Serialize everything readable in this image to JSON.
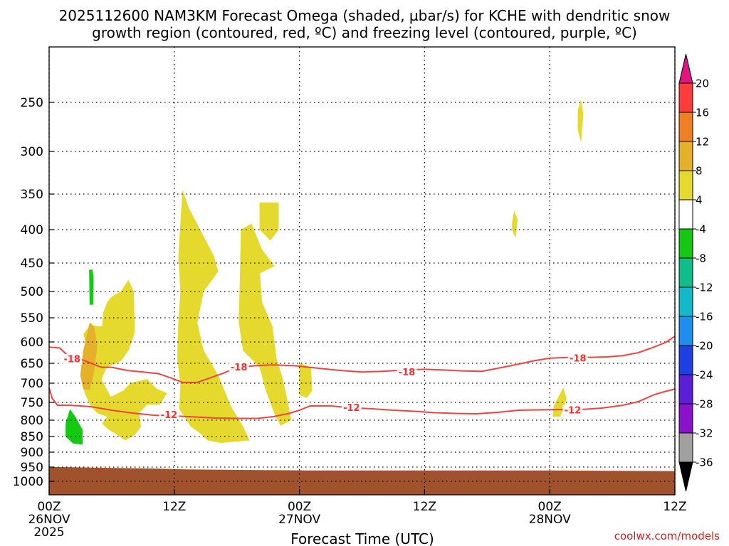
{
  "chart_data": {
    "type": "heatmap",
    "title_line1": "2025112600 NAM3KM Forecast Omega (shaded, µbar/s) for KCHE with dendritic snow",
    "title_line2": "growth region (contoured, red, ºC) and freezing level (contoured, purple, ºC)",
    "xlabel": "Forecast Time (UTC)",
    "x_range_hours": [
      0,
      60
    ],
    "pressure_range_hpa": [
      1025,
      200
    ],
    "x_ticks": [
      {
        "hour": 0,
        "line1": "00Z",
        "line2": "26NOV",
        "line3": "2025"
      },
      {
        "hour": 12,
        "line1": "12Z",
        "line2": "",
        "line3": ""
      },
      {
        "hour": 24,
        "line1": "00Z",
        "line2": "27NOV",
        "line3": ""
      },
      {
        "hour": 36,
        "line1": "12Z",
        "line2": "",
        "line3": ""
      },
      {
        "hour": 48,
        "line1": "00Z",
        "line2": "28NOV",
        "line3": ""
      },
      {
        "hour": 60,
        "line1": "12Z",
        "line2": "",
        "line3": ""
      }
    ],
    "y_ticks": [
      {
        "p": 250,
        "label": "250"
      },
      {
        "p": 300,
        "label": "300"
      },
      {
        "p": 350,
        "label": "350"
      },
      {
        "p": 400,
        "label": "400"
      },
      {
        "p": 450,
        "label": "450"
      },
      {
        "p": 500,
        "label": "500"
      },
      {
        "p": 550,
        "label": "550"
      },
      {
        "p": 600,
        "label": "600"
      },
      {
        "p": 650,
        "label": "650"
      },
      {
        "p": 700,
        "label": "700"
      },
      {
        "p": 750,
        "label": "750"
      },
      {
        "p": 800,
        "label": "800"
      },
      {
        "p": 850,
        "label": "850"
      },
      {
        "p": 900,
        "label": "900"
      },
      {
        "p": 950,
        "label": "950"
      },
      {
        "p": 1000,
        "label": "1000"
      }
    ],
    "colorbar": [
      {
        "value": 20,
        "label": "20",
        "color": "#ff3b3b"
      },
      {
        "value": 16,
        "label": "16",
        "color": "#ef7f22"
      },
      {
        "value": 12,
        "label": "12",
        "color": "#e5b02a"
      },
      {
        "value": 8,
        "label": "8",
        "color": "#e6d92e"
      },
      {
        "value": 4,
        "label": "4",
        "color": "#ffffff"
      },
      {
        "value": -4,
        "label": "-4",
        "color": "#14c814"
      },
      {
        "value": -8,
        "label": "-8",
        "color": "#10be8a"
      },
      {
        "value": -12,
        "label": "-12",
        "color": "#12b9c8"
      },
      {
        "value": -16,
        "label": "-16",
        "color": "#1f8ef0"
      },
      {
        "value": -20,
        "label": "-20",
        "color": "#1d3fe6"
      },
      {
        "value": -24,
        "label": "-24",
        "color": "#5a1fd6"
      },
      {
        "value": -28,
        "label": "-28",
        "color": "#8a12cc"
      },
      {
        "value": -32,
        "label": "-32",
        "color": "#a0a0a0"
      },
      {
        "value": -36,
        "label": "-36",
        "color": "#000000"
      }
    ],
    "colorbar_top_arrow_color": "#e0167e",
    "terrain_color": "#a0522d",
    "contour_color": "#ee4444",
    "shaded_regions": [
      {
        "name": "omega-upper-spike",
        "color": "#e6d92e",
        "pts": [
          [
            50.7,
            258
          ],
          [
            51.0,
            248
          ],
          [
            51.2,
            262
          ],
          [
            51.0,
            290
          ],
          [
            50.7,
            278
          ]
        ]
      },
      {
        "name": "omega-upper-small",
        "color": "#e6d92e",
        "pts": [
          [
            44.4,
            390
          ],
          [
            44.6,
            374
          ],
          [
            44.9,
            386
          ],
          [
            44.7,
            412
          ],
          [
            44.4,
            400
          ]
        ]
      },
      {
        "name": "omega-plume-mid",
        "color": "#e6d92e",
        "pts": [
          [
            12.8,
            346
          ],
          [
            13.4,
            370
          ],
          [
            14.8,
            410
          ],
          [
            15.8,
            440
          ],
          [
            16.2,
            465
          ],
          [
            14.8,
            500
          ],
          [
            14.2,
            560
          ],
          [
            14.8,
            620
          ],
          [
            16.2,
            680
          ],
          [
            17.4,
            760
          ],
          [
            18.6,
            820
          ],
          [
            19.2,
            862
          ],
          [
            16.5,
            870
          ],
          [
            15.2,
            862
          ],
          [
            14.4,
            838
          ],
          [
            13.6,
            820
          ],
          [
            13.0,
            790
          ],
          [
            12.5,
            770
          ],
          [
            12.6,
            700
          ],
          [
            12.3,
            640
          ],
          [
            12.4,
            560
          ],
          [
            12.6,
            500
          ],
          [
            12.4,
            440
          ]
        ]
      },
      {
        "name": "omega-plume-east",
        "color": "#e6d92e",
        "pts": [
          [
            18.4,
            400
          ],
          [
            19.4,
            392
          ],
          [
            20.4,
            430
          ],
          [
            21.6,
            455
          ],
          [
            20.2,
            468
          ],
          [
            20.4,
            520
          ],
          [
            21.4,
            568
          ],
          [
            21.8,
            640
          ],
          [
            22.4,
            690
          ],
          [
            22.8,
            740
          ],
          [
            23.2,
            800
          ],
          [
            22.2,
            816
          ],
          [
            21.6,
            780
          ],
          [
            20.8,
            720
          ],
          [
            20.2,
            660
          ],
          [
            19.4,
            640
          ],
          [
            18.6,
            620
          ],
          [
            18.2,
            560
          ],
          [
            18.3,
            480
          ]
        ]
      },
      {
        "name": "omega-upper-east",
        "color": "#e6d92e",
        "pts": [
          [
            20.2,
            362
          ],
          [
            22.0,
            362
          ],
          [
            22.0,
            400
          ],
          [
            21.2,
            416
          ],
          [
            20.2,
            400
          ]
        ]
      },
      {
        "name": "omega-west-cell",
        "color": "#e6d92e",
        "pts": [
          [
            5.1,
            568
          ],
          [
            5.2,
            540
          ],
          [
            5.6,
            520
          ],
          [
            6.0,
            510
          ],
          [
            6.9,
            500
          ],
          [
            7.6,
            480
          ],
          [
            8.1,
            500
          ],
          [
            8.2,
            580
          ],
          [
            7.6,
            620
          ],
          [
            6.9,
            644
          ],
          [
            5.5,
            660
          ],
          [
            5.0,
            690
          ],
          [
            5.9,
            736
          ],
          [
            7.1,
            720
          ],
          [
            7.8,
            700
          ],
          [
            9.4,
            690
          ],
          [
            10.3,
            715
          ],
          [
            11.3,
            726
          ],
          [
            10.6,
            756
          ],
          [
            9.4,
            756
          ],
          [
            8.6,
            780
          ],
          [
            8.8,
            820
          ],
          [
            8.2,
            845
          ],
          [
            7.3,
            862
          ],
          [
            6.6,
            846
          ],
          [
            5.6,
            826
          ],
          [
            5.1,
            810
          ],
          [
            5.6,
            790
          ],
          [
            4.6,
            780
          ],
          [
            4.0,
            760
          ],
          [
            3.4,
            724
          ],
          [
            3.1,
            660
          ],
          [
            3.6,
            608
          ],
          [
            3.3,
            584
          ],
          [
            3.9,
            566
          ]
        ]
      },
      {
        "name": "omega-west-core",
        "color": "#e5b02a",
        "pts": [
          [
            3.9,
            560
          ],
          [
            4.3,
            568
          ],
          [
            4.6,
            610
          ],
          [
            4.3,
            672
          ],
          [
            3.9,
            716
          ],
          [
            3.3,
            716
          ],
          [
            3.0,
            680
          ],
          [
            3.3,
            620
          ]
        ]
      },
      {
        "name": "omega-small-27nov",
        "color": "#e6d92e",
        "pts": [
          [
            24.0,
            650
          ],
          [
            25.1,
            660
          ],
          [
            25.2,
            720
          ],
          [
            24.7,
            738
          ],
          [
            24.0,
            730
          ]
        ]
      },
      {
        "name": "omega-small-28nov",
        "color": "#e6d92e",
        "pts": [
          [
            48.4,
            760
          ],
          [
            49.3,
            712
          ],
          [
            49.6,
            740
          ],
          [
            49.0,
            790
          ],
          [
            48.3,
            790
          ]
        ]
      },
      {
        "name": "omega-green-thin",
        "color": "#14c814",
        "pts": [
          [
            3.85,
            462
          ],
          [
            4.15,
            462
          ],
          [
            4.25,
            480
          ],
          [
            4.2,
            525
          ],
          [
            3.9,
            525
          ]
        ]
      },
      {
        "name": "omega-green-low",
        "color": "#14c814",
        "pts": [
          [
            1.6,
            810
          ],
          [
            2.0,
            770
          ],
          [
            2.5,
            790
          ],
          [
            3.2,
            830
          ],
          [
            3.2,
            875
          ],
          [
            2.3,
            872
          ],
          [
            1.6,
            850
          ]
        ]
      }
    ],
    "contours": [
      {
        "name": "contour-minus18",
        "label": "-18",
        "label_positions": [
          [
            2.2,
            640
          ],
          [
            18.2,
            660
          ],
          [
            34.3,
            672
          ],
          [
            50.7,
            638
          ]
        ],
        "pts": [
          [
            0,
            612
          ],
          [
            1.0,
            614
          ],
          [
            1.7,
            630
          ],
          [
            3.0,
            640
          ],
          [
            5.0,
            660
          ],
          [
            6.0,
            660
          ],
          [
            7.5,
            668
          ],
          [
            9.0,
            672
          ],
          [
            10.5,
            676
          ],
          [
            11.8,
            688
          ],
          [
            12.8,
            698
          ],
          [
            14.2,
            698
          ],
          [
            15.5,
            686
          ],
          [
            16.7,
            675
          ],
          [
            18.0,
            660
          ],
          [
            19.8,
            656
          ],
          [
            21.5,
            654
          ],
          [
            23.5,
            656
          ],
          [
            26.0,
            663
          ],
          [
            28.0,
            668
          ],
          [
            30.0,
            672
          ],
          [
            32.0,
            670
          ],
          [
            34.0,
            667
          ],
          [
            36.0,
            665
          ],
          [
            38.0,
            667
          ],
          [
            39.5,
            669
          ],
          [
            41.5,
            670
          ],
          [
            43.5,
            660
          ],
          [
            45.0,
            652
          ],
          [
            46.5,
            644
          ],
          [
            48.0,
            638
          ],
          [
            50.0,
            636
          ],
          [
            52.0,
            636
          ],
          [
            53.5,
            635
          ],
          [
            55.0,
            632
          ],
          [
            56.5,
            625
          ],
          [
            58.0,
            612
          ],
          [
            59.2,
            600
          ],
          [
            60.0,
            588
          ]
        ]
      },
      {
        "name": "contour-minus12",
        "label": "-12",
        "label_positions": [
          [
            11.5,
            785
          ],
          [
            29.0,
            765
          ],
          [
            50.2,
            772
          ]
        ],
        "pts": [
          [
            0,
            712
          ],
          [
            0.3,
            740
          ],
          [
            0.8,
            758
          ],
          [
            2.0,
            758
          ],
          [
            4.0,
            762
          ],
          [
            6.0,
            772
          ],
          [
            8.0,
            780
          ],
          [
            10.0,
            786
          ],
          [
            12.0,
            788
          ],
          [
            14.0,
            791
          ],
          [
            16.0,
            794
          ],
          [
            18.0,
            795
          ],
          [
            20.0,
            795
          ],
          [
            21.5,
            790
          ],
          [
            23.0,
            781
          ],
          [
            24.0,
            772
          ],
          [
            25.0,
            760
          ],
          [
            27.0,
            760
          ],
          [
            29.0,
            765
          ],
          [
            31.0,
            768
          ],
          [
            33.0,
            772
          ],
          [
            35.0,
            775
          ],
          [
            37.0,
            779
          ],
          [
            39.0,
            781
          ],
          [
            41.0,
            782
          ],
          [
            43.0,
            778
          ],
          [
            45.0,
            772
          ],
          [
            47.0,
            771
          ],
          [
            49.0,
            770
          ],
          [
            51.0,
            770
          ],
          [
            53.0,
            766
          ],
          [
            55.0,
            758
          ],
          [
            56.5,
            748
          ],
          [
            58.0,
            730
          ],
          [
            59.0,
            722
          ],
          [
            60.0,
            715
          ]
        ]
      }
    ],
    "terrain_surface": [
      [
        0,
        950
      ],
      [
        1.0,
        950
      ],
      [
        4.0,
        952
      ],
      [
        10.0,
        955
      ],
      [
        13.0,
        958
      ],
      [
        25.0,
        962
      ],
      [
        48.0,
        962
      ],
      [
        60.0,
        964
      ]
    ],
    "credit": "coolwx.com/models"
  }
}
